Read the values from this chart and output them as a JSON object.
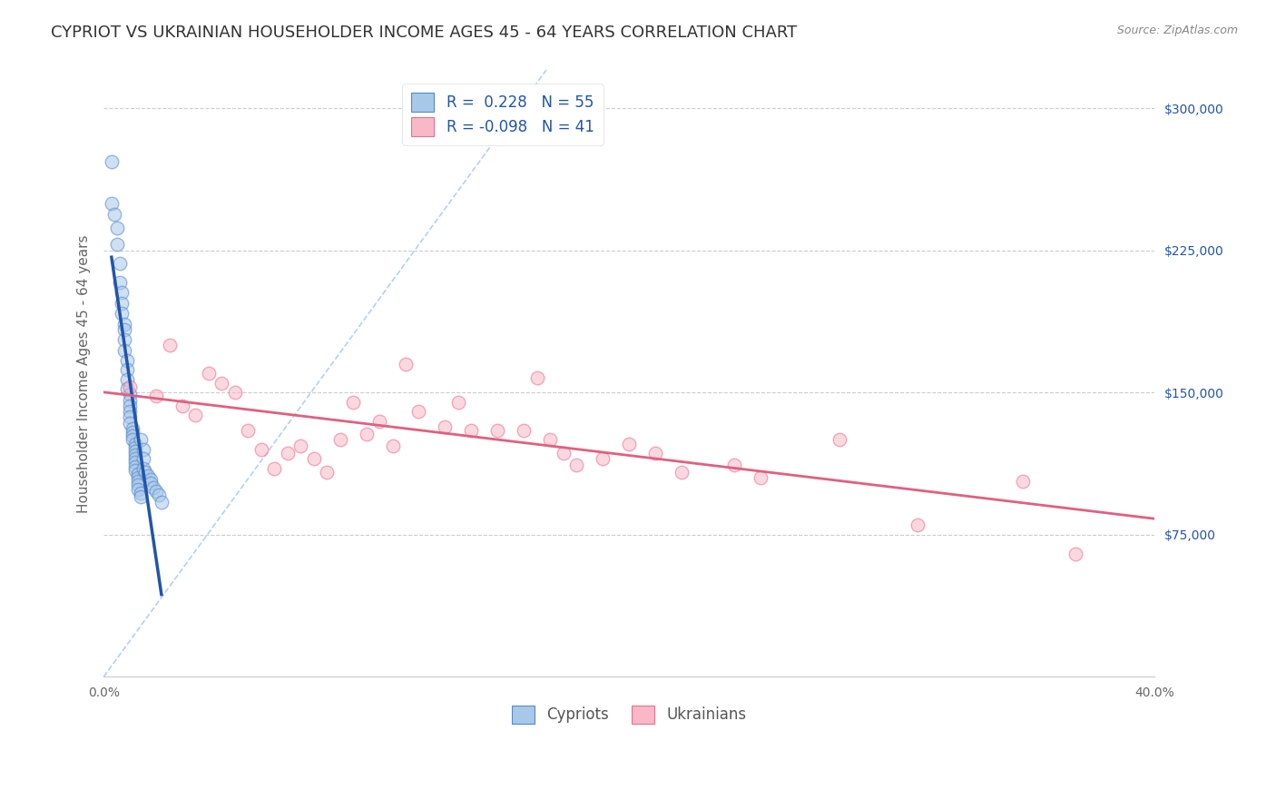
{
  "title": "CYPRIOT VS UKRAINIAN HOUSEHOLDER INCOME AGES 45 - 64 YEARS CORRELATION CHART",
  "source": "Source: ZipAtlas.com",
  "ylabel": "Householder Income Ages 45 - 64 years",
  "xlim": [
    0.0,
    0.4
  ],
  "ylim": [
    0,
    320000
  ],
  "xticks": [
    0.0,
    0.05,
    0.1,
    0.15,
    0.2,
    0.25,
    0.3,
    0.35,
    0.4
  ],
  "xticklabels": [
    "0.0%",
    "",
    "",
    "",
    "",
    "",
    "",
    "",
    "40.0%"
  ],
  "ytick_values": [
    75000,
    150000,
    225000,
    300000
  ],
  "ytick_labels": [
    "$75,000",
    "$150,000",
    "$225,000",
    "$300,000"
  ],
  "cypriot_color": "#A8C8E8",
  "ukrainian_color": "#F8B8C8",
  "cypriot_edge_color": "#5588CC",
  "ukrainian_edge_color": "#E87090",
  "cypriot_line_color": "#2255AA",
  "ukrainian_line_color": "#E06080",
  "ref_line_color": "#AACCEE",
  "legend_R_cypriot": "0.228",
  "legend_N_cypriot": "55",
  "legend_R_ukrainian": "-0.098",
  "legend_N_ukrainian": "41",
  "cypriot_x": [
    0.003,
    0.003,
    0.004,
    0.005,
    0.005,
    0.006,
    0.006,
    0.007,
    0.007,
    0.007,
    0.008,
    0.008,
    0.008,
    0.008,
    0.009,
    0.009,
    0.009,
    0.009,
    0.01,
    0.01,
    0.01,
    0.01,
    0.01,
    0.01,
    0.011,
    0.011,
    0.011,
    0.011,
    0.012,
    0.012,
    0.012,
    0.012,
    0.012,
    0.012,
    0.012,
    0.012,
    0.013,
    0.013,
    0.013,
    0.013,
    0.013,
    0.014,
    0.014,
    0.014,
    0.015,
    0.015,
    0.015,
    0.016,
    0.017,
    0.018,
    0.018,
    0.019,
    0.02,
    0.021,
    0.022
  ],
  "cypriot_y": [
    272000,
    250000,
    244000,
    237000,
    228000,
    218000,
    208000,
    203000,
    197000,
    192000,
    186000,
    183000,
    178000,
    172000,
    167000,
    162000,
    157000,
    152000,
    149000,
    146000,
    143000,
    140000,
    137000,
    134000,
    131000,
    129000,
    127000,
    125000,
    123000,
    121000,
    119000,
    117000,
    115000,
    113000,
    111000,
    109000,
    107000,
    105000,
    103000,
    101000,
    99000,
    97000,
    95000,
    125000,
    120000,
    115000,
    110000,
    108000,
    106000,
    104000,
    102000,
    100000,
    98000,
    96000,
    92000
  ],
  "ukrainian_x": [
    0.01,
    0.02,
    0.025,
    0.03,
    0.035,
    0.04,
    0.045,
    0.05,
    0.055,
    0.06,
    0.065,
    0.07,
    0.075,
    0.08,
    0.085,
    0.09,
    0.095,
    0.1,
    0.105,
    0.11,
    0.115,
    0.12,
    0.13,
    0.135,
    0.14,
    0.15,
    0.16,
    0.165,
    0.17,
    0.175,
    0.18,
    0.19,
    0.2,
    0.21,
    0.22,
    0.24,
    0.25,
    0.28,
    0.31,
    0.35,
    0.37
  ],
  "ukrainian_y": [
    153000,
    148000,
    175000,
    143000,
    138000,
    160000,
    155000,
    150000,
    130000,
    120000,
    110000,
    118000,
    122000,
    115000,
    108000,
    125000,
    145000,
    128000,
    135000,
    122000,
    165000,
    140000,
    132000,
    145000,
    130000,
    130000,
    130000,
    158000,
    125000,
    118000,
    112000,
    115000,
    123000,
    118000,
    108000,
    112000,
    105000,
    125000,
    80000,
    103000,
    65000
  ],
  "background_color": "#FFFFFF",
  "title_fontsize": 13,
  "axis_label_fontsize": 11,
  "tick_fontsize": 10,
  "legend_fontsize": 12,
  "marker_size": 110,
  "marker_alpha": 0.55
}
